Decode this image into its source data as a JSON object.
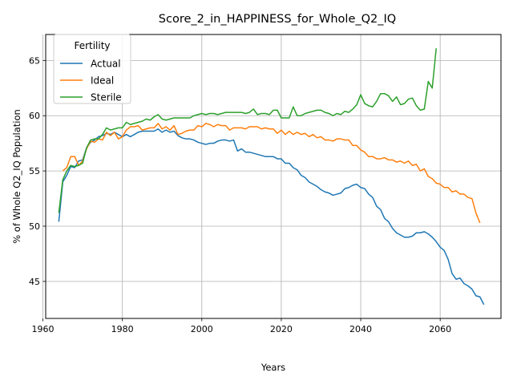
{
  "chart_data": {
    "type": "line",
    "title": "Score_2_in_HAPPINESS_for_Whole_Q2_IQ",
    "xlabel": "Years",
    "ylabel": "% of Whole Q2_IQ Population",
    "xlim": [
      1960.7,
      2075.3
    ],
    "ylim": [
      41.65,
      67.35
    ],
    "xticks": [
      1960,
      1980,
      2000,
      2020,
      2040,
      2060
    ],
    "yticks": [
      45,
      50,
      55,
      60,
      65
    ],
    "grid": true,
    "legend": {
      "title": "Fertility",
      "position": "upper-left"
    },
    "colors": {
      "Actual": "#1f77b4",
      "Ideal": "#ff7f0e",
      "Sterile": "#2ca02c"
    },
    "series": [
      {
        "name": "Actual",
        "points": [
          [
            1964,
            50.4
          ],
          [
            1965,
            54.0
          ],
          [
            1966,
            54.6
          ],
          [
            1967,
            55.4
          ],
          [
            1968,
            55.3
          ],
          [
            1969,
            55.9
          ],
          [
            1970,
            56.0
          ],
          [
            1971,
            57.1
          ],
          [
            1972,
            57.6
          ],
          [
            1973,
            57.8
          ],
          [
            1974,
            58.1
          ],
          [
            1975,
            58.2
          ],
          [
            1976,
            58.4
          ],
          [
            1977,
            58.3
          ],
          [
            1978,
            58.5
          ],
          [
            1979,
            58.3
          ],
          [
            1980,
            58.1
          ],
          [
            1981,
            58.3
          ],
          [
            1982,
            58.1
          ],
          [
            1983,
            58.3
          ],
          [
            1984,
            58.5
          ],
          [
            1985,
            58.6
          ],
          [
            1986,
            58.6
          ],
          [
            1987,
            58.6
          ],
          [
            1988,
            58.6
          ],
          [
            1989,
            58.8
          ],
          [
            1990,
            58.5
          ],
          [
            1991,
            58.7
          ],
          [
            1992,
            58.5
          ],
          [
            1993,
            58.6
          ],
          [
            1994,
            58.2
          ],
          [
            1995,
            58.0
          ],
          [
            1996,
            57.9
          ],
          [
            1997,
            57.9
          ],
          [
            1998,
            57.8
          ],
          [
            1999,
            57.6
          ],
          [
            2000,
            57.5
          ],
          [
            2001,
            57.4
          ],
          [
            2002,
            57.5
          ],
          [
            2003,
            57.5
          ],
          [
            2004,
            57.7
          ],
          [
            2005,
            57.8
          ],
          [
            2006,
            57.8
          ],
          [
            2007,
            57.7
          ],
          [
            2008,
            57.8
          ],
          [
            2009,
            56.8
          ],
          [
            2010,
            57.0
          ],
          [
            2011,
            56.7
          ],
          [
            2012,
            56.7
          ],
          [
            2013,
            56.6
          ],
          [
            2014,
            56.5
          ],
          [
            2015,
            56.4
          ],
          [
            2016,
            56.3
          ],
          [
            2017,
            56.3
          ],
          [
            2018,
            56.3
          ],
          [
            2019,
            56.1
          ],
          [
            2020,
            56.1
          ],
          [
            2021,
            55.7
          ],
          [
            2022,
            55.7
          ],
          [
            2023,
            55.3
          ],
          [
            2024,
            55.1
          ],
          [
            2025,
            54.6
          ],
          [
            2026,
            54.4
          ],
          [
            2027,
            54.0
          ],
          [
            2028,
            53.8
          ],
          [
            2029,
            53.6
          ],
          [
            2030,
            53.3
          ],
          [
            2031,
            53.1
          ],
          [
            2032,
            53.0
          ],
          [
            2033,
            52.8
          ],
          [
            2034,
            52.9
          ],
          [
            2035,
            53.0
          ],
          [
            2036,
            53.4
          ],
          [
            2037,
            53.5
          ],
          [
            2038,
            53.7
          ],
          [
            2039,
            53.8
          ],
          [
            2040,
            53.5
          ],
          [
            2041,
            53.4
          ],
          [
            2042,
            52.9
          ],
          [
            2043,
            52.6
          ],
          [
            2044,
            51.8
          ],
          [
            2045,
            51.5
          ],
          [
            2046,
            50.7
          ],
          [
            2047,
            50.4
          ],
          [
            2048,
            49.8
          ],
          [
            2049,
            49.4
          ],
          [
            2050,
            49.2
          ],
          [
            2051,
            49.0
          ],
          [
            2052,
            49.0
          ],
          [
            2053,
            49.1
          ],
          [
            2054,
            49.4
          ],
          [
            2055,
            49.4
          ],
          [
            2056,
            49.5
          ],
          [
            2057,
            49.3
          ],
          [
            2058,
            49.0
          ],
          [
            2059,
            48.6
          ],
          [
            2060,
            48.1
          ],
          [
            2061,
            47.8
          ],
          [
            2062,
            47.0
          ],
          [
            2063,
            45.7
          ],
          [
            2064,
            45.2
          ],
          [
            2065,
            45.3
          ],
          [
            2066,
            44.8
          ],
          [
            2067,
            44.6
          ],
          [
            2068,
            44.3
          ],
          [
            2069,
            43.7
          ],
          [
            2070,
            43.6
          ],
          [
            2071,
            42.9
          ]
        ]
      },
      {
        "name": "Ideal",
        "points": [
          [
            1965,
            55.0
          ],
          [
            1966,
            55.3
          ],
          [
            1967,
            56.3
          ],
          [
            1968,
            56.3
          ],
          [
            1969,
            55.5
          ],
          [
            1970,
            55.9
          ],
          [
            1971,
            57.0
          ],
          [
            1972,
            57.7
          ],
          [
            1973,
            57.6
          ],
          [
            1974,
            57.9
          ],
          [
            1975,
            57.8
          ],
          [
            1976,
            58.5
          ],
          [
            1977,
            58.2
          ],
          [
            1978,
            58.5
          ],
          [
            1979,
            57.9
          ],
          [
            1980,
            58.1
          ],
          [
            1981,
            58.7
          ],
          [
            1982,
            59.0
          ],
          [
            1983,
            59.0
          ],
          [
            1984,
            59.1
          ],
          [
            1985,
            58.7
          ],
          [
            1986,
            58.8
          ],
          [
            1987,
            58.9
          ],
          [
            1988,
            58.9
          ],
          [
            1989,
            59.3
          ],
          [
            1990,
            58.8
          ],
          [
            1991,
            59.0
          ],
          [
            1992,
            58.7
          ],
          [
            1993,
            59.1
          ],
          [
            1994,
            58.3
          ],
          [
            1995,
            58.4
          ],
          [
            1996,
            58.6
          ],
          [
            1997,
            58.7
          ],
          [
            1998,
            58.7
          ],
          [
            1999,
            59.1
          ],
          [
            2000,
            59.0
          ],
          [
            2001,
            59.3
          ],
          [
            2002,
            59.2
          ],
          [
            2003,
            59.0
          ],
          [
            2004,
            59.2
          ],
          [
            2005,
            59.1
          ],
          [
            2006,
            59.1
          ],
          [
            2007,
            58.7
          ],
          [
            2008,
            58.9
          ],
          [
            2009,
            58.9
          ],
          [
            2010,
            58.9
          ],
          [
            2011,
            58.8
          ],
          [
            2012,
            59.0
          ],
          [
            2013,
            59.0
          ],
          [
            2014,
            59.0
          ],
          [
            2015,
            58.8
          ],
          [
            2016,
            58.9
          ],
          [
            2017,
            58.8
          ],
          [
            2018,
            58.8
          ],
          [
            2019,
            58.4
          ],
          [
            2020,
            58.7
          ],
          [
            2021,
            58.3
          ],
          [
            2022,
            58.6
          ],
          [
            2023,
            58.3
          ],
          [
            2024,
            58.5
          ],
          [
            2025,
            58.3
          ],
          [
            2026,
            58.4
          ],
          [
            2027,
            58.1
          ],
          [
            2028,
            58.3
          ],
          [
            2029,
            58.0
          ],
          [
            2030,
            58.1
          ],
          [
            2031,
            57.8
          ],
          [
            2032,
            57.8
          ],
          [
            2033,
            57.7
          ],
          [
            2034,
            57.9
          ],
          [
            2035,
            57.9
          ],
          [
            2036,
            57.8
          ],
          [
            2037,
            57.8
          ],
          [
            2038,
            57.3
          ],
          [
            2039,
            57.3
          ],
          [
            2040,
            56.9
          ],
          [
            2041,
            56.7
          ],
          [
            2042,
            56.3
          ],
          [
            2043,
            56.3
          ],
          [
            2044,
            56.1
          ],
          [
            2045,
            56.1
          ],
          [
            2046,
            56.2
          ],
          [
            2047,
            56.0
          ],
          [
            2048,
            56.0
          ],
          [
            2049,
            55.8
          ],
          [
            2050,
            55.9
          ],
          [
            2051,
            55.7
          ],
          [
            2052,
            55.9
          ],
          [
            2053,
            55.5
          ],
          [
            2054,
            55.6
          ],
          [
            2055,
            55.0
          ],
          [
            2056,
            55.2
          ],
          [
            2057,
            54.5
          ],
          [
            2058,
            54.3
          ],
          [
            2059,
            53.9
          ],
          [
            2060,
            53.8
          ],
          [
            2061,
            53.5
          ],
          [
            2062,
            53.5
          ],
          [
            2063,
            53.1
          ],
          [
            2064,
            53.2
          ],
          [
            2065,
            52.9
          ],
          [
            2066,
            52.9
          ],
          [
            2067,
            52.6
          ],
          [
            2068,
            52.5
          ],
          [
            2069,
            51.2
          ],
          [
            2070,
            50.3
          ]
        ]
      },
      {
        "name": "Sterile",
        "points": [
          [
            1964,
            51.2
          ],
          [
            1965,
            54.2
          ],
          [
            1966,
            55.0
          ],
          [
            1967,
            55.5
          ],
          [
            1968,
            55.4
          ],
          [
            1969,
            55.5
          ],
          [
            1970,
            55.7
          ],
          [
            1971,
            57.1
          ],
          [
            1972,
            57.8
          ],
          [
            1973,
            57.9
          ],
          [
            1974,
            57.9
          ],
          [
            1975,
            58.3
          ],
          [
            1976,
            58.9
          ],
          [
            1977,
            58.7
          ],
          [
            1978,
            58.8
          ],
          [
            1979,
            58.9
          ],
          [
            1980,
            58.9
          ],
          [
            1981,
            59.4
          ],
          [
            1982,
            59.2
          ],
          [
            1983,
            59.3
          ],
          [
            1984,
            59.4
          ],
          [
            1985,
            59.5
          ],
          [
            1986,
            59.7
          ],
          [
            1987,
            59.6
          ],
          [
            1988,
            59.9
          ],
          [
            1989,
            60.1
          ],
          [
            1990,
            59.7
          ],
          [
            1991,
            59.6
          ],
          [
            1992,
            59.7
          ],
          [
            1993,
            59.8
          ],
          [
            1994,
            59.8
          ],
          [
            1995,
            59.8
          ],
          [
            1996,
            59.8
          ],
          [
            1997,
            59.8
          ],
          [
            1998,
            60.0
          ],
          [
            1999,
            60.1
          ],
          [
            2000,
            60.2
          ],
          [
            2001,
            60.1
          ],
          [
            2002,
            60.2
          ],
          [
            2003,
            60.2
          ],
          [
            2004,
            60.1
          ],
          [
            2005,
            60.2
          ],
          [
            2006,
            60.3
          ],
          [
            2007,
            60.3
          ],
          [
            2008,
            60.3
          ],
          [
            2009,
            60.3
          ],
          [
            2010,
            60.3
          ],
          [
            2011,
            60.2
          ],
          [
            2012,
            60.3
          ],
          [
            2013,
            60.6
          ],
          [
            2014,
            60.1
          ],
          [
            2015,
            60.2
          ],
          [
            2016,
            60.2
          ],
          [
            2017,
            60.1
          ],
          [
            2018,
            60.5
          ],
          [
            2019,
            60.5
          ],
          [
            2020,
            59.8
          ],
          [
            2021,
            59.8
          ],
          [
            2022,
            59.8
          ],
          [
            2023,
            60.8
          ],
          [
            2024,
            60.0
          ],
          [
            2025,
            60.0
          ],
          [
            2026,
            60.2
          ],
          [
            2027,
            60.3
          ],
          [
            2028,
            60.4
          ],
          [
            2029,
            60.5
          ],
          [
            2030,
            60.5
          ],
          [
            2031,
            60.3
          ],
          [
            2032,
            60.2
          ],
          [
            2033,
            60.0
          ],
          [
            2034,
            60.2
          ],
          [
            2035,
            60.1
          ],
          [
            2036,
            60.4
          ],
          [
            2037,
            60.3
          ],
          [
            2038,
            60.6
          ],
          [
            2039,
            61.0
          ],
          [
            2040,
            61.9
          ],
          [
            2041,
            61.1
          ],
          [
            2042,
            60.9
          ],
          [
            2043,
            60.8
          ],
          [
            2044,
            61.3
          ],
          [
            2045,
            62.0
          ],
          [
            2046,
            62.0
          ],
          [
            2047,
            61.8
          ],
          [
            2048,
            61.3
          ],
          [
            2049,
            61.7
          ],
          [
            2050,
            61.0
          ],
          [
            2051,
            61.1
          ],
          [
            2052,
            61.5
          ],
          [
            2053,
            61.6
          ],
          [
            2054,
            60.9
          ],
          [
            2055,
            60.5
          ],
          [
            2056,
            60.6
          ],
          [
            2057,
            63.1
          ],
          [
            2058,
            62.5
          ],
          [
            2059,
            66.1
          ]
        ]
      }
    ]
  }
}
